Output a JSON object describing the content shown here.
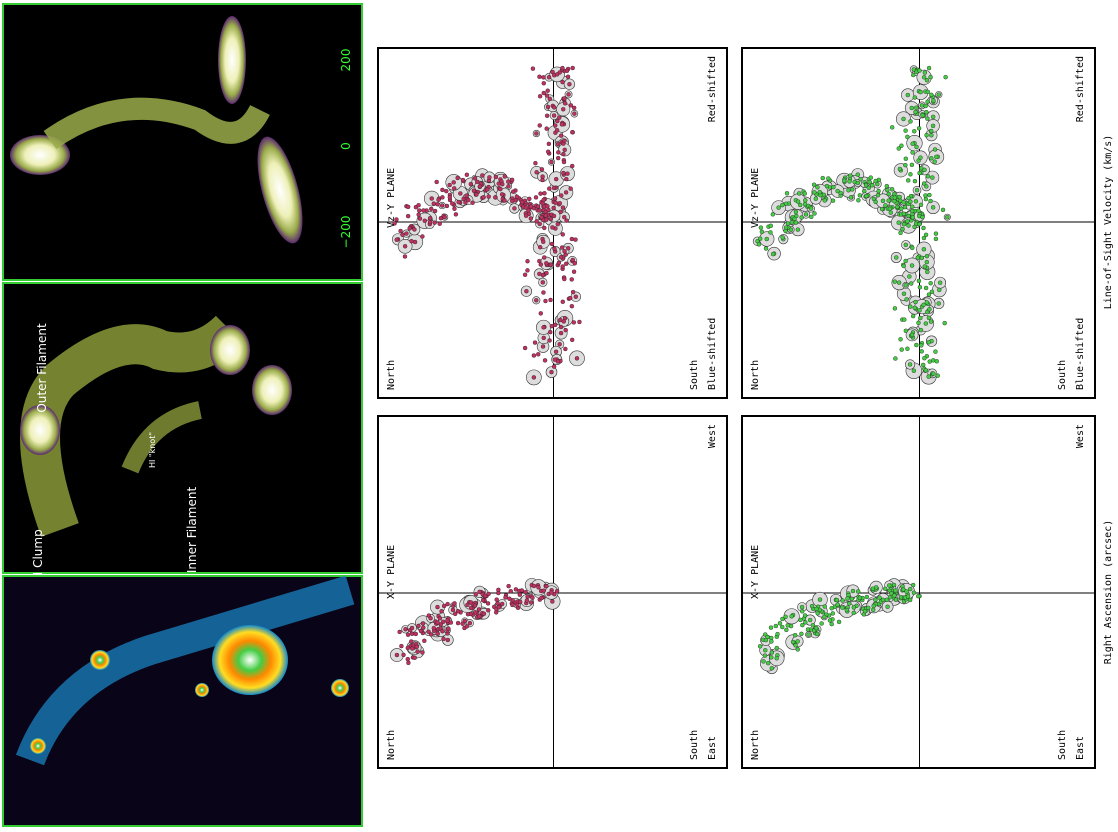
{
  "panels": {
    "tick_labels": [
      "200",
      "0",
      "−200"
    ],
    "annotations": [
      "Outer Filament",
      "HI \"knot\"",
      "Inner Filament",
      "N Clump"
    ]
  },
  "plots": [
    {
      "plane": "Vz-Y PLANE",
      "north": "North",
      "south": "South",
      "top_right": "Red-shifted",
      "bottom_right": "Blue-shifted"
    },
    {
      "plane": "Vz-Y PLANE",
      "north": "North",
      "south": "South",
      "top_right": "Red-shifted",
      "bottom_right": "Blue-shifted"
    },
    {
      "plane": "X-Y PLANE",
      "north": "North",
      "south": "South",
      "top_right": "West",
      "bottom_right": "East"
    },
    {
      "plane": "X-Y PLANE",
      "north": "North",
      "south": "South",
      "top_right": "West",
      "bottom_right": "East"
    }
  ],
  "axis_labels": [
    "Line-of-Sight Velocity (km/s)",
    "Right Ascension (arcsec)"
  ]
}
